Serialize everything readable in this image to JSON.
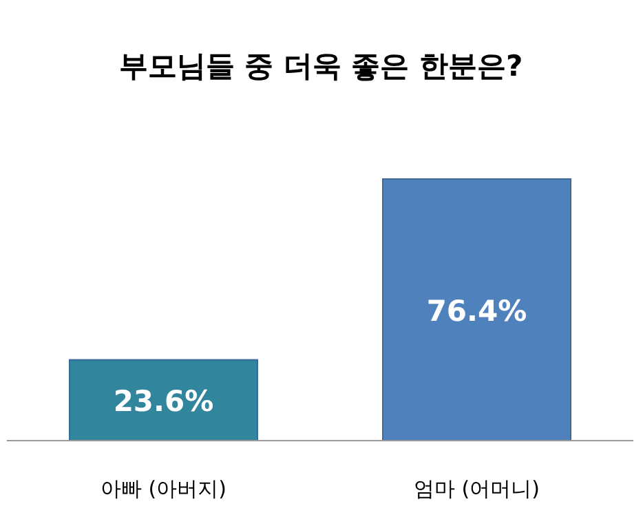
{
  "chart_data": {
    "type": "bar",
    "title": "부모님들 중 더욱 좋은 한분은?",
    "categories": [
      "아빠 (아버지)",
      "엄마 (어머니)"
    ],
    "values": [
      23.6,
      76.4
    ],
    "colors": [
      "#31859c",
      "#4f81bd"
    ],
    "value_labels": [
      "23.6%",
      "76.4%"
    ]
  }
}
